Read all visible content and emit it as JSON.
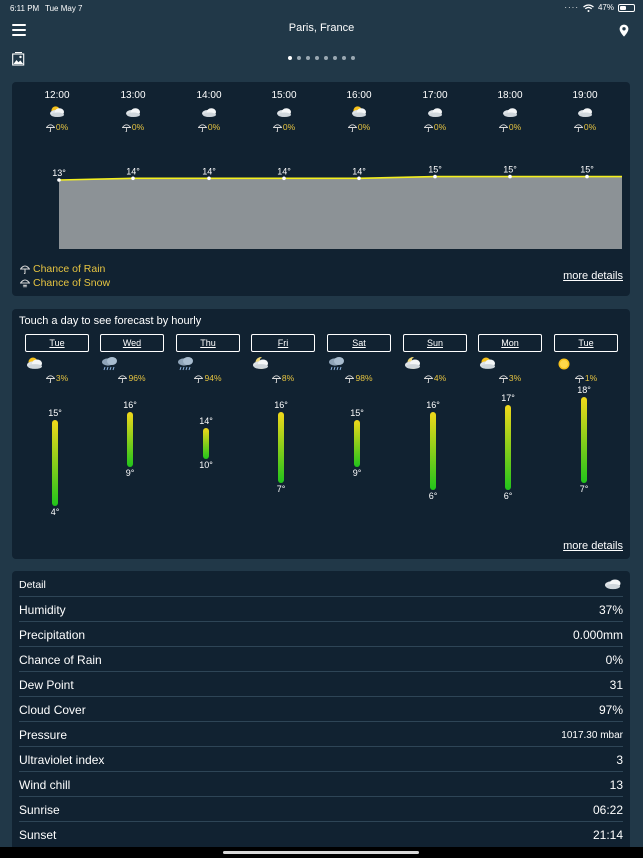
{
  "status_bar": {
    "time": "6:11 PM",
    "date": "Tue May 7",
    "battery": "47%",
    "battery_level": 0.47
  },
  "header": {
    "title": "Paris, France",
    "page_count": 8,
    "active_page": 1
  },
  "hourly": {
    "items": [
      {
        "time": "12:00",
        "icon": "sun-cloud-icon",
        "chance": "0%"
      },
      {
        "time": "13:00",
        "icon": "cloudy-icon",
        "chance": "0%"
      },
      {
        "time": "14:00",
        "icon": "cloudy-icon",
        "chance": "0%"
      },
      {
        "time": "15:00",
        "icon": "cloudy-icon",
        "chance": "0%"
      },
      {
        "time": "16:00",
        "icon": "sun-cloud-icon",
        "chance": "0%"
      },
      {
        "time": "17:00",
        "icon": "cloudy-icon",
        "chance": "0%"
      },
      {
        "time": "18:00",
        "icon": "cloudy-icon",
        "chance": "0%"
      },
      {
        "time": "19:00",
        "icon": "cloudy-icon",
        "chance": "0%"
      }
    ],
    "temps": [
      "13°",
      "14°",
      "14°",
      "14°",
      "14°",
      "15°",
      "15°",
      "15°"
    ],
    "temp_values": [
      13,
      14,
      14,
      14,
      14,
      15,
      15,
      15
    ],
    "legend_rain": "Chance of Rain",
    "legend_snow": "Chance of Snow",
    "more_details": "more details"
  },
  "daily": {
    "hint": "Touch a day to see forecast by hourly",
    "days": [
      {
        "day": "Tue",
        "icon": "sun-cloud-icon",
        "chance": "3%",
        "high": "15°",
        "low": "4°",
        "high_value": 15,
        "low_value": 4
      },
      {
        "day": "Wed",
        "icon": "rain-icon",
        "chance": "96%",
        "high": "16°",
        "low": "9°",
        "high_value": 16,
        "low_value": 9
      },
      {
        "day": "Thu",
        "icon": "rain-icon",
        "chance": "94%",
        "high": "14°",
        "low": "10°",
        "high_value": 14,
        "low_value": 10
      },
      {
        "day": "Fri",
        "icon": "moon-cloud-icon",
        "chance": "8%",
        "high": "16°",
        "low": "7°",
        "high_value": 16,
        "low_value": 7
      },
      {
        "day": "Sat",
        "icon": "rain-icon",
        "chance": "98%",
        "high": "15°",
        "low": "9°",
        "high_value": 15,
        "low_value": 9
      },
      {
        "day": "Sun",
        "icon": "moon-cloud-icon",
        "chance": "4%",
        "high": "16°",
        "low": "6°",
        "high_value": 16,
        "low_value": 6
      },
      {
        "day": "Mon",
        "icon": "sun-cloud-icon",
        "chance": "3%",
        "high": "17°",
        "low": "6°",
        "high_value": 17,
        "low_value": 6
      },
      {
        "day": "Tue",
        "icon": "sun-icon",
        "chance": "1%",
        "high": "18°",
        "low": "7°",
        "high_value": 18,
        "low_value": 7
      }
    ],
    "more_details": "more details"
  },
  "detail": {
    "title": "Detail",
    "rows": [
      {
        "label": "Humidity",
        "value": "37%"
      },
      {
        "label": "Precipitation",
        "value": "0.000mm"
      },
      {
        "label": "Chance of Rain",
        "value": "0%"
      },
      {
        "label": "Dew Point",
        "value": "31"
      },
      {
        "label": "Cloud Cover",
        "value": "97%"
      },
      {
        "label": "Pressure",
        "value": "1017.30 mbar"
      },
      {
        "label": "Ultraviolet index",
        "value": "3"
      },
      {
        "label": "Wind chill",
        "value": "13"
      },
      {
        "label": "Sunrise",
        "value": "06:22"
      },
      {
        "label": "Sunset",
        "value": "21:14"
      }
    ]
  },
  "colors": {
    "background": "#213848",
    "card": "#112231",
    "accent_yellow": "#e6c441",
    "line": "#f4ef1e",
    "area": "#8c9296"
  }
}
